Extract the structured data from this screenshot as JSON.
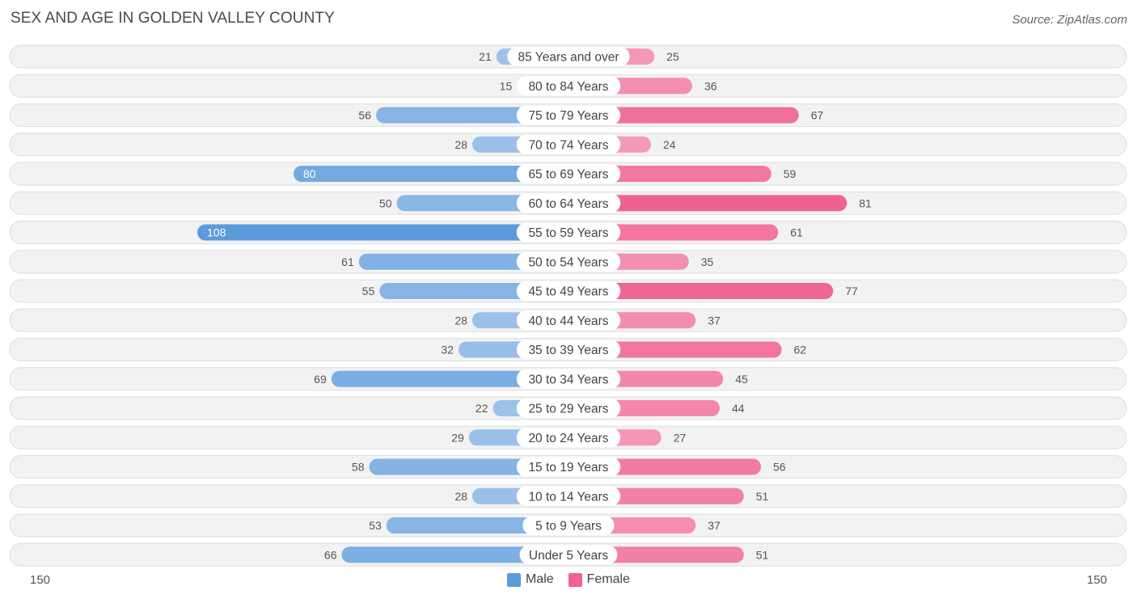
{
  "header": {
    "title": "SEX AND AGE IN GOLDEN VALLEY COUNTY",
    "source": "Source: ZipAtlas.com"
  },
  "colors": {
    "male_dark": "#5b9bdb",
    "male_light": "#a9c9ec",
    "female_dark": "#f0628f",
    "female_light": "#f6a9c2",
    "row_bg": "#f2f2f2",
    "row_border": "#dedede"
  },
  "chart_data": {
    "type": "bar",
    "orientation": "horizontal-diverging",
    "title": "SEX AND AGE IN GOLDEN VALLEY COUNTY",
    "categories": [
      "85 Years and over",
      "80 to 84 Years",
      "75 to 79 Years",
      "70 to 74 Years",
      "65 to 69 Years",
      "60 to 64 Years",
      "55 to 59 Years",
      "50 to 54 Years",
      "45 to 49 Years",
      "40 to 44 Years",
      "35 to 39 Years",
      "30 to 34 Years",
      "25 to 29 Years",
      "20 to 24 Years",
      "15 to 19 Years",
      "10 to 14 Years",
      "5 to 9 Years",
      "Under 5 Years"
    ],
    "series": [
      {
        "name": "Male",
        "values": [
          21,
          15,
          56,
          28,
          80,
          50,
          108,
          61,
          55,
          28,
          32,
          69,
          22,
          29,
          58,
          28,
          53,
          66
        ]
      },
      {
        "name": "Female",
        "values": [
          25,
          36,
          67,
          24,
          59,
          81,
          61,
          35,
          77,
          37,
          62,
          45,
          44,
          27,
          56,
          51,
          37,
          51
        ]
      }
    ],
    "axis": {
      "left_label": "150",
      "right_label": "150",
      "max": 150
    },
    "legend": {
      "position": "bottom-center",
      "male_label": "Male",
      "female_label": "Female"
    }
  }
}
